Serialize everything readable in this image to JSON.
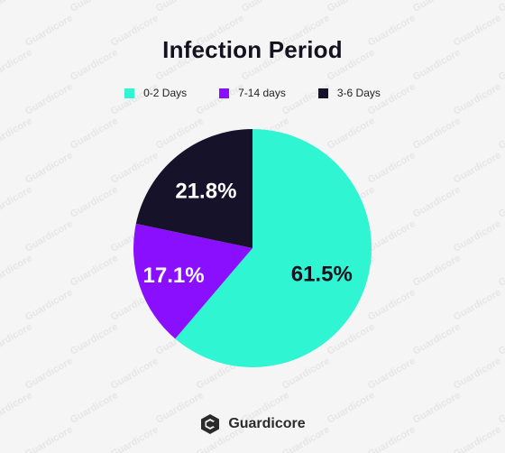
{
  "chart_data": {
    "type": "pie",
    "title": "Infection Period",
    "categories": [
      "0-2 Days",
      "7-14 days",
      "3-6 Days"
    ],
    "values": [
      61.5,
      17.1,
      21.8
    ],
    "value_labels": [
      "61.5%",
      "17.1%",
      "21.8%"
    ],
    "colors": [
      "#2ff5d2",
      "#8a0fff",
      "#15122a"
    ],
    "label_colors": [
      "#14121f",
      "#ffffff",
      "#ffffff"
    ],
    "legend_position": "top"
  },
  "brand": {
    "name": "Guardicore",
    "watermark_text": "Guardicore"
  }
}
